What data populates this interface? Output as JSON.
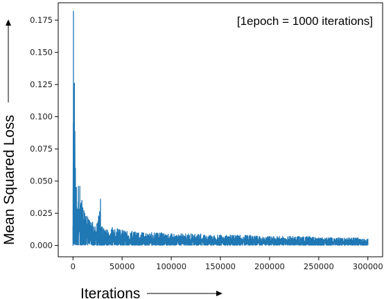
{
  "chart_data": {
    "type": "line",
    "title": "",
    "xlabel": "Iterations",
    "ylabel": "Mean Squared Loss",
    "annotation": "[1epoch = 1000 iterations]",
    "xlim": [
      -15000,
      315000
    ],
    "ylim": [
      -0.0088,
      0.1885
    ],
    "x_ticks": [
      0,
      50000,
      100000,
      150000,
      200000,
      250000,
      300000
    ],
    "x_tick_labels": [
      "0",
      "50000",
      "100000",
      "150000",
      "200000",
      "250000",
      "300000"
    ],
    "y_ticks": [
      0.0,
      0.025,
      0.05,
      0.075,
      0.1,
      0.125,
      0.15,
      0.175
    ],
    "y_tick_labels": [
      "0.000",
      "0.025",
      "0.050",
      "0.075",
      "0.100",
      "0.125",
      "0.150",
      "0.175"
    ],
    "grid": false,
    "legend": "none",
    "series_color": "#1f77b4",
    "series": [
      {
        "envelope": {
          "x": [
            0,
            500,
            1000,
            1500,
            2500,
            3500,
            4500,
            5500,
            7000,
            9000,
            12000,
            15000,
            20000,
            25000,
            28000,
            30000,
            35000,
            40000,
            45000,
            50000,
            55000,
            60000,
            70000,
            80000,
            90000,
            100000,
            110000,
            120000,
            130000,
            140000,
            150000,
            160000,
            170000,
            180000,
            190000,
            200000,
            210000,
            220000,
            230000,
            240000,
            250000,
            260000,
            270000,
            280000,
            290000,
            295000,
            300000
          ],
          "max": [
            0.015,
            0.182,
            0.08,
            0.126,
            0.06,
            0.045,
            0.028,
            0.046,
            0.046,
            0.035,
            0.025,
            0.022,
            0.018,
            0.017,
            0.036,
            0.014,
            0.012,
            0.014,
            0.013,
            0.012,
            0.011,
            0.011,
            0.01,
            0.01,
            0.01,
            0.009,
            0.009,
            0.009,
            0.009,
            0.008,
            0.008,
            0.008,
            0.008,
            0.008,
            0.007,
            0.007,
            0.007,
            0.007,
            0.007,
            0.007,
            0.006,
            0.006,
            0.006,
            0.006,
            0.006,
            0.005,
            0.005
          ],
          "min": [
            0.0,
            0.002,
            0.001,
            0.001,
            0.0005,
            0.0005,
            0.0005,
            0.0004,
            0.0004,
            0.0003,
            0.0003,
            0.0003,
            0.0002,
            0.0002,
            0.0002,
            0.0002,
            0.0002,
            0.0002,
            0.0002,
            0.0002,
            0.0002,
            0.0002,
            0.0002,
            0.0002,
            0.0002,
            0.0002,
            0.0002,
            0.0002,
            0.0002,
            0.0002,
            0.0002,
            0.0002,
            0.0002,
            0.0002,
            0.0002,
            0.0002,
            0.0002,
            0.0002,
            0.0002,
            0.0002,
            0.0002,
            0.0002,
            0.0002,
            0.0002,
            0.0002,
            0.0002,
            0.0002
          ]
        }
      }
    ]
  }
}
